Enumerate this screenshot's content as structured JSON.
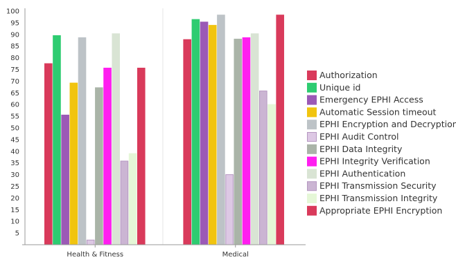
{
  "chart_data": {
    "type": "bar",
    "categories": [
      "Health & Fitness",
      "Medical"
    ],
    "ylim": [
      0,
      100
    ],
    "yticks": [
      5,
      10,
      15,
      20,
      25,
      30,
      35,
      40,
      45,
      50,
      55,
      60,
      65,
      70,
      75,
      80,
      85,
      90,
      95,
      100
    ],
    "grid": "vertical category separator",
    "legend_position": "right",
    "series": [
      {
        "name": "Authorization",
        "color": "#d93a5b",
        "border": "#d93a5b",
        "values": [
          77.5,
          87.8
        ]
      },
      {
        "name": "Unique id",
        "color": "#2ecc71",
        "border": "#2ecc71",
        "values": [
          89.5,
          96.4
        ]
      },
      {
        "name": "Emergency EPHI Access",
        "color": "#9b59b6",
        "border": "#9b59b6",
        "values": [
          55.5,
          95.3
        ]
      },
      {
        "name": "Automatic Session timeout",
        "color": "#f1c40f",
        "border": "#f1c40f",
        "values": [
          69.2,
          93.9
        ]
      },
      {
        "name": "EPHI Encryption and Decryption",
        "color": "#bdc3c7",
        "border": "#bdc3c7",
        "values": [
          88.6,
          98.3
        ]
      },
      {
        "name": "EPHI Audit Control",
        "color": "#ddc8e4",
        "border": "#b597c1",
        "values": [
          2.0,
          30.0
        ]
      },
      {
        "name": "EPHI Data Integrity",
        "color": "#aab4a8",
        "border": "#aab4a8",
        "values": [
          67.2,
          88.0
        ]
      },
      {
        "name": "EPHI Integrity Verification",
        "color": "#ff1ef0",
        "border": "#ff1ef0",
        "values": [
          75.6,
          88.6
        ]
      },
      {
        "name": "EPHI Authentication",
        "color": "#d9e4d4",
        "border": "#d9e4d4",
        "values": [
          90.3,
          90.3
        ]
      },
      {
        "name": "EPHI Transmission Security",
        "color": "#cbb5d3",
        "border": "#b597c1",
        "values": [
          35.8,
          65.8
        ]
      },
      {
        "name": "EPHI Transmission Integrity",
        "color": "#e5f7d7",
        "border": "#e5f7d7",
        "values": [
          39.0,
          60.0
        ]
      },
      {
        "name": "Appropriate EPHI Encryption",
        "color": "#d93a5b",
        "border": "#d93a5b",
        "values": [
          75.6,
          98.3
        ]
      }
    ]
  }
}
